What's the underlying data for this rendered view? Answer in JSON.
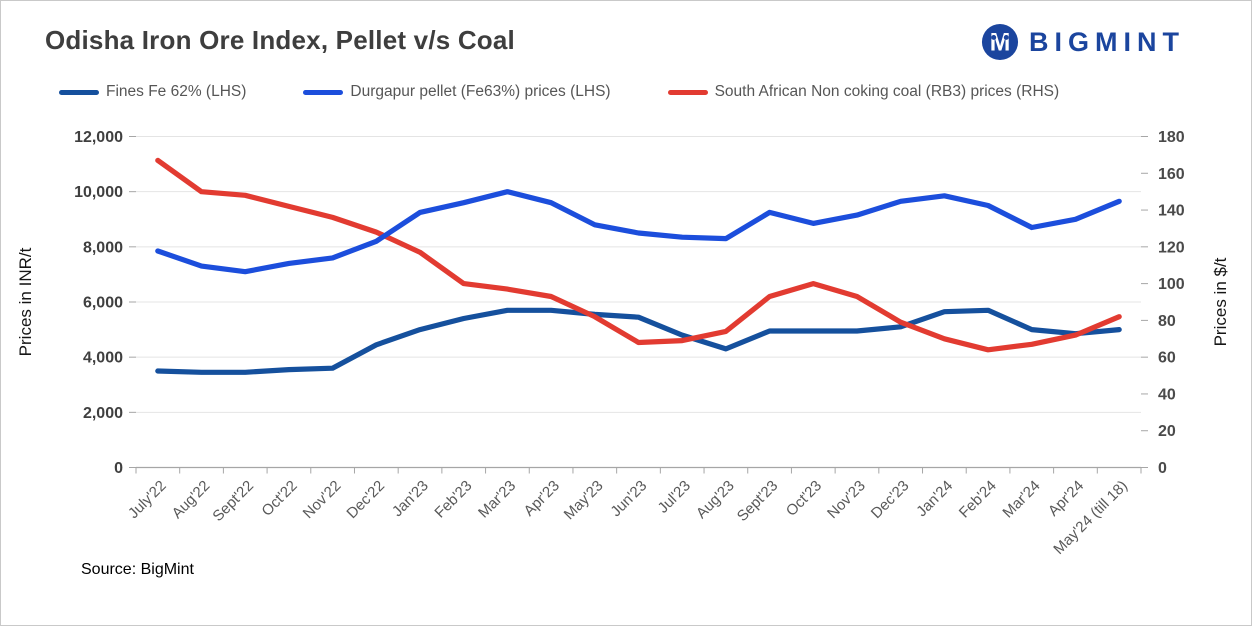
{
  "header": {
    "title": "Odisha Iron Ore Index, Pellet v/s Coal",
    "brand": "BIGMINT",
    "brand_color": "#1b459e"
  },
  "footer": {
    "source": "Source: BigMint"
  },
  "chart_data": {
    "type": "line",
    "title": "Odisha Iron Ore Index, Pellet v/s Coal",
    "legend_position": "top",
    "grid": true,
    "categories": [
      "July'22",
      "Aug'22",
      "Sept'22",
      "Oct'22",
      "Nov'22",
      "Dec'22",
      "Jan'23",
      "Feb'23",
      "Mar'23",
      "Apr'23",
      "May'23",
      "Jun'23",
      "Jul'23",
      "Aug'23",
      "Sept'23",
      "Oct'23",
      "Nov'23",
      "Dec'23",
      "Jan'24",
      "Feb'24",
      "Mar'24",
      "Apr'24",
      "May'24 (till 18)"
    ],
    "left_axis": {
      "label": "Prices in INR/t",
      "min": 0,
      "max": 12000,
      "step": 2000
    },
    "right_axis": {
      "label": "Prices in $/t",
      "min": 0,
      "max": 180,
      "step": 20
    },
    "series": [
      {
        "name": "Fines Fe 62% (LHS)",
        "axis": "left",
        "color": "#15509D",
        "values": [
          3500,
          3450,
          3450,
          3550,
          3600,
          4450,
          5000,
          5400,
          5700,
          5700,
          5550,
          5450,
          4800,
          4300,
          4950,
          4950,
          4950,
          5100,
          5650,
          5700,
          5000,
          4850,
          5000
        ]
      },
      {
        "name": "Durgapur pellet (Fe63%) prices (LHS)",
        "axis": "left",
        "color": "#1C4EDC",
        "values": [
          7850,
          7300,
          7100,
          7400,
          7600,
          8200,
          9250,
          9600,
          10000,
          9600,
          8800,
          8500,
          8350,
          8300,
          9250,
          8850,
          9150,
          9650,
          9850,
          9500,
          8700,
          9000,
          9650
        ]
      },
      {
        "name": "South African Non coking coal (RB3) prices (RHS)",
        "axis": "right",
        "color": "#E23B31",
        "values": [
          167,
          150,
          148,
          142,
          136,
          128,
          117,
          100,
          97,
          93,
          82,
          68,
          69,
          74,
          93,
          100,
          93,
          79,
          70,
          64,
          67,
          72,
          82
        ]
      }
    ],
    "draw_order": [
      0,
      2,
      1
    ]
  }
}
